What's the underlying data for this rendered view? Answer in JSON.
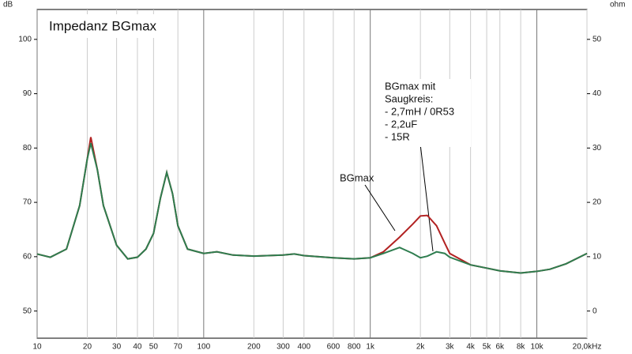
{
  "chart_data": {
    "type": "line",
    "title": "Impedanz BGmax",
    "y_label": "dB",
    "y2_label": "ohm",
    "xscale": "log",
    "xlim": [
      10,
      20000
    ],
    "xticks": [
      10,
      20,
      30,
      40,
      50,
      70,
      100,
      200,
      300,
      400,
      600,
      800,
      {
        "value": 1000,
        "label": "1k"
      },
      {
        "value": 2000,
        "label": "2k"
      },
      {
        "value": 3000,
        "label": "3k"
      },
      {
        "value": 4000,
        "label": "4k"
      },
      {
        "value": 5000,
        "label": "5k"
      },
      {
        "value": 6000,
        "label": "6k"
      },
      {
        "value": 8000,
        "label": "8k"
      },
      {
        "value": 10000,
        "label": "10k"
      },
      {
        "value": 20000,
        "label": "20,0kHz"
      }
    ],
    "ylim": [
      45,
      105.5
    ],
    "yticks": [
      50,
      60,
      70,
      80,
      90,
      100
    ],
    "y2lim": [
      -5,
      55.5
    ],
    "y2ticks": [
      0,
      10,
      20,
      30,
      40,
      50
    ],
    "grid": true,
    "x": [
      10,
      12,
      15,
      18,
      20,
      21,
      23,
      25,
      30,
      35,
      40,
      45,
      50,
      55,
      60,
      65,
      70,
      80,
      100,
      120,
      150,
      200,
      300,
      350,
      400,
      600,
      800,
      1000,
      1200,
      1500,
      1800,
      2000,
      2200,
      2500,
      2800,
      3000,
      4000,
      5000,
      6000,
      8000,
      10000,
      12000,
      15000,
      20000
    ],
    "series": [
      {
        "name": "BGmax",
        "color": "#b22222",
        "axis": "y2",
        "values": [
          10.5,
          9.9,
          11.4,
          19.4,
          28,
          32,
          26,
          19.4,
          12.1,
          9.6,
          9.9,
          11.4,
          14.3,
          20.8,
          25.5,
          21.6,
          15.7,
          11.4,
          10.6,
          10.9,
          10.3,
          10.1,
          10.3,
          10.5,
          10.2,
          9.8,
          9.6,
          9.8,
          10.9,
          13.6,
          16.0,
          17.5,
          17.6,
          15.7,
          12.5,
          10.6,
          8.5,
          7.9,
          7.4,
          7.0,
          7.3,
          7.7,
          8.7,
          10.6
        ]
      },
      {
        "color": "#2e7d4f",
        "axis": "y2",
        "values": [
          10.5,
          9.9,
          11.4,
          19.4,
          28,
          30.9,
          26,
          19.4,
          12.1,
          9.6,
          9.9,
          11.4,
          14.3,
          20.8,
          25.5,
          21.6,
          15.7,
          11.4,
          10.6,
          10.9,
          10.3,
          10.1,
          10.3,
          10.5,
          10.2,
          9.8,
          9.6,
          9.8,
          10.6,
          11.7,
          10.6,
          9.8,
          10.1,
          10.9,
          10.6,
          9.9,
          8.5,
          7.9,
          7.4,
          7.0,
          7.3,
          7.7,
          8.7,
          10.6
        ]
      }
    ],
    "annotation_lines": [
      "BGmax mit",
      "Saugkreis:",
      "- 2,7mH / 0R53",
      "- 2,2uF",
      "- 15R"
    ]
  }
}
